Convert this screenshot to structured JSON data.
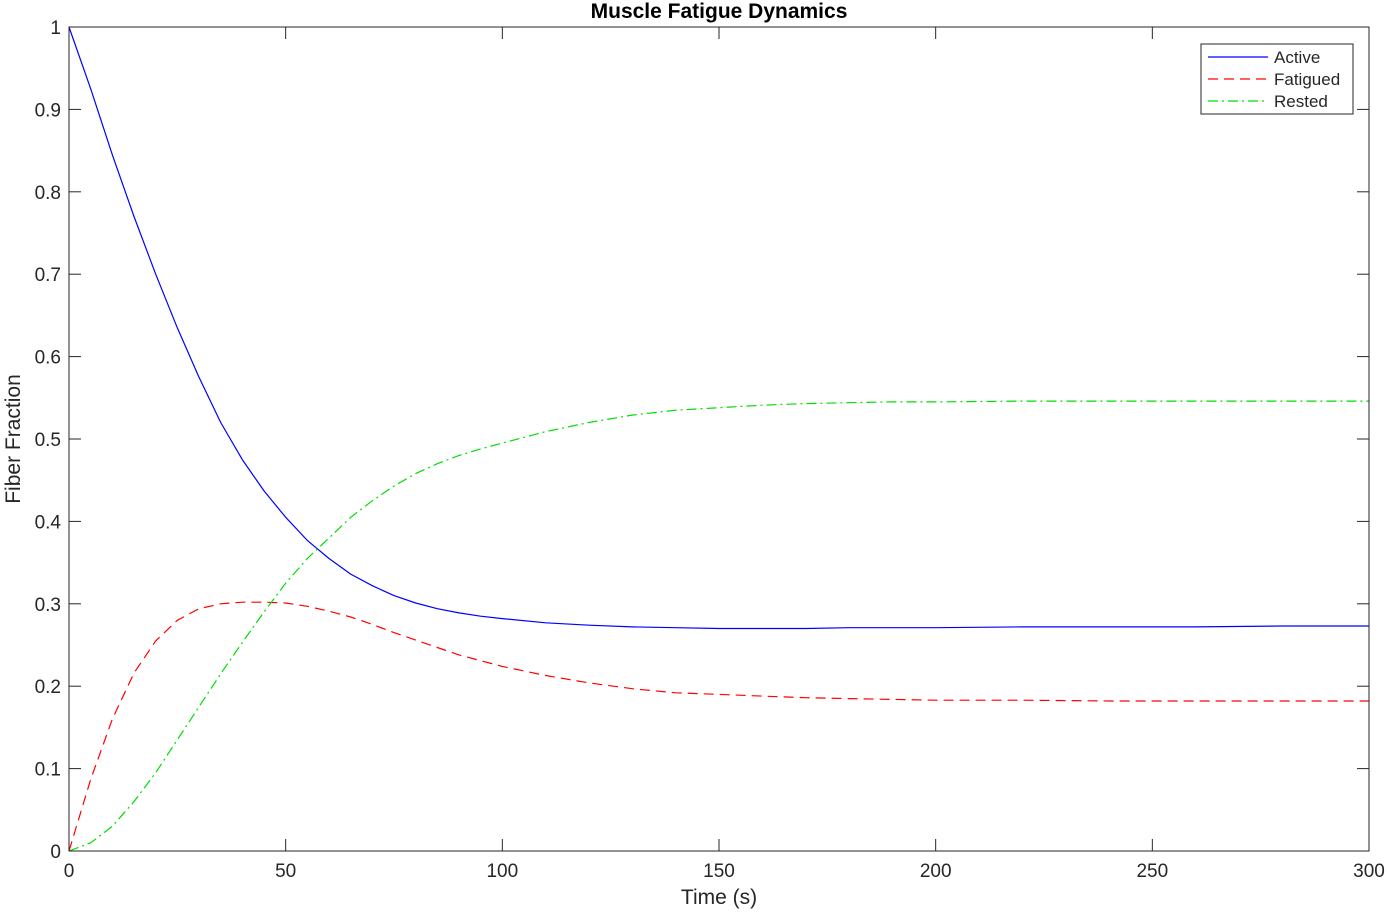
{
  "chart_data": {
    "type": "line",
    "title": "Muscle Fatigue Dynamics",
    "xlabel": "Time (s)",
    "ylabel": "Fiber Fraction",
    "xlim": [
      0,
      300
    ],
    "ylim": [
      0,
      1
    ],
    "xticks": [
      0,
      50,
      100,
      150,
      200,
      250,
      300
    ],
    "yticks": [
      0,
      0.1,
      0.2,
      0.3,
      0.4,
      0.5,
      0.6,
      0.7,
      0.8,
      0.9,
      1
    ],
    "xtick_labels": [
      "0",
      "50",
      "100",
      "150",
      "200",
      "250",
      "300"
    ],
    "ytick_labels": [
      "0",
      "0.1",
      "0.2",
      "0.3",
      "0.4",
      "0.5",
      "0.6",
      "0.7",
      "0.8",
      "0.9",
      "1"
    ],
    "grid": false,
    "legend_position": "top-right",
    "x": [
      0,
      5,
      10,
      15,
      20,
      25,
      30,
      35,
      40,
      45,
      50,
      55,
      60,
      65,
      70,
      75,
      80,
      85,
      90,
      95,
      100,
      110,
      120,
      130,
      140,
      150,
      160,
      170,
      180,
      190,
      200,
      220,
      240,
      260,
      280,
      300
    ],
    "series": [
      {
        "name": "Active",
        "color": "#0000ff",
        "dash": "solid",
        "values": [
          1.0,
          0.925,
          0.845,
          0.77,
          0.7,
          0.635,
          0.575,
          0.52,
          0.475,
          0.437,
          0.405,
          0.377,
          0.355,
          0.336,
          0.322,
          0.31,
          0.301,
          0.294,
          0.289,
          0.285,
          0.282,
          0.277,
          0.274,
          0.272,
          0.271,
          0.27,
          0.27,
          0.27,
          0.271,
          0.271,
          0.271,
          0.272,
          0.272,
          0.272,
          0.273,
          0.273
        ]
      },
      {
        "name": "Fatigued",
        "color": "#ff0000",
        "dash": "dashed",
        "values": [
          0.0,
          0.087,
          0.16,
          0.216,
          0.255,
          0.28,
          0.294,
          0.3,
          0.302,
          0.302,
          0.301,
          0.297,
          0.291,
          0.284,
          0.275,
          0.265,
          0.256,
          0.247,
          0.238,
          0.231,
          0.224,
          0.213,
          0.204,
          0.197,
          0.192,
          0.19,
          0.188,
          0.186,
          0.185,
          0.184,
          0.183,
          0.183,
          0.182,
          0.182,
          0.182,
          0.182
        ]
      },
      {
        "name": "Rested",
        "color": "#00dd00",
        "dash": "dashdot",
        "values": [
          0.0,
          0.01,
          0.03,
          0.06,
          0.095,
          0.135,
          0.175,
          0.215,
          0.253,
          0.29,
          0.325,
          0.355,
          0.38,
          0.405,
          0.425,
          0.443,
          0.458,
          0.47,
          0.48,
          0.488,
          0.495,
          0.509,
          0.52,
          0.529,
          0.535,
          0.538,
          0.541,
          0.543,
          0.544,
          0.545,
          0.545,
          0.546,
          0.546,
          0.546,
          0.546,
          0.546
        ]
      }
    ]
  }
}
